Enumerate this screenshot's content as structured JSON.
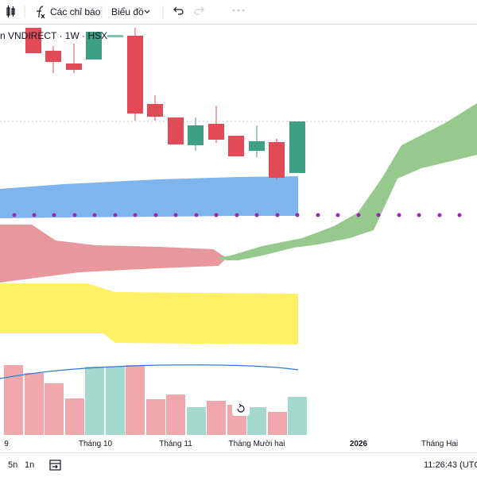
{
  "toolbar": {
    "indicators": "Các chỉ báo",
    "chart_menu": "Biểu đồ"
  },
  "legend": {
    "title": "n VNDIRECT · 1W · HSX"
  },
  "x_axis": {
    "labels": [
      "9",
      "Tháng 10",
      "Tháng 11",
      "Tháng Mười hai",
      "2026",
      "Tháng Hai"
    ]
  },
  "footer": {
    "ranges": [
      "5n",
      "1n"
    ],
    "clock": "11:26:43 (UTC"
  }
}
